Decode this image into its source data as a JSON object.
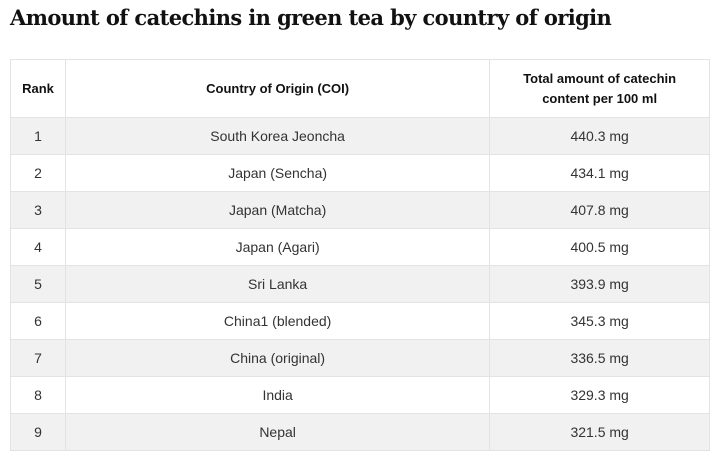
{
  "title": "Amount of catechins in green tea by country of origin",
  "table": {
    "headers": [
      "Rank",
      "Country of Origin (COI)",
      "Total amount of catechin content per 100 ml"
    ],
    "header_lines": {
      "col3_line1": "Total amount of catechin",
      "col3_line2": "content per 100 ml"
    },
    "rows": [
      {
        "rank": "1",
        "country": "South Korea Jeoncha",
        "amount": "440.3 mg"
      },
      {
        "rank": "2",
        "country": "Japan (Sencha)",
        "amount": "434.1 mg"
      },
      {
        "rank": "3",
        "country": "Japan (Matcha)",
        "amount": "407.8 mg"
      },
      {
        "rank": "4",
        "country": "Japan (Agari)",
        "amount": "400.5 mg"
      },
      {
        "rank": "5",
        "country": "Sri Lanka",
        "amount": "393.9 mg"
      },
      {
        "rank": "6",
        "country": "China1 (blended)",
        "amount": "345.3 mg"
      },
      {
        "rank": "7",
        "country": "China (original)",
        "amount": "336.5 mg"
      },
      {
        "rank": "8",
        "country": "India",
        "amount": "329.3 mg"
      },
      {
        "rank": "9",
        "country": "Nepal",
        "amount": "321.5 mg"
      }
    ]
  },
  "colors": {
    "stripe": "#f1f1f1",
    "border": "#e3e3e3",
    "text": "#333333"
  }
}
